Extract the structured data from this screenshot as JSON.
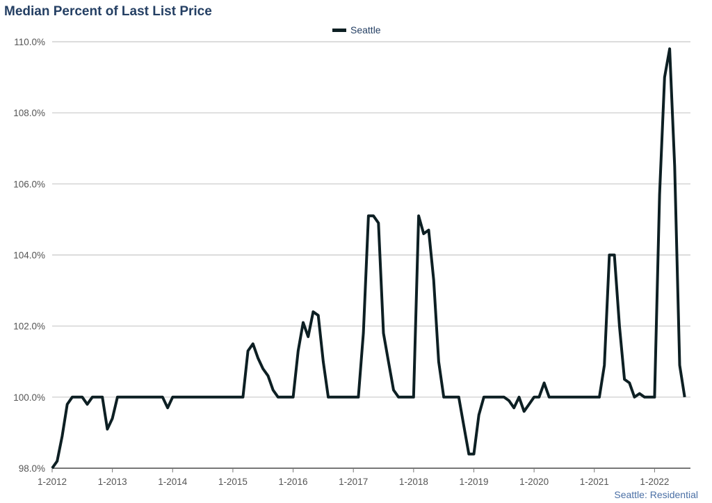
{
  "chart_data": {
    "type": "line",
    "title": "Median Percent of Last List Price",
    "footer": "Seattle: Residential",
    "xlabel": "",
    "ylabel": "",
    "ylim": [
      98,
      110
    ],
    "yticks": [
      98,
      100,
      102,
      104,
      106,
      108,
      110
    ],
    "ytick_labels": [
      "98.0%",
      "100.0%",
      "102.0%",
      "104.0%",
      "106.0%",
      "108.0%",
      "110.0%"
    ],
    "xtick_labels": [
      "1-2012",
      "1-2013",
      "1-2014",
      "1-2015",
      "1-2016",
      "1-2017",
      "1-2018",
      "1-2019",
      "1-2020",
      "1-2021",
      "1-2022"
    ],
    "x_start": "2012-01",
    "x_frequency": "monthly",
    "grid": true,
    "legend_position": "top-center",
    "series": [
      {
        "name": "Seattle",
        "color": "#0d1f23",
        "values": [
          98.0,
          98.2,
          98.9,
          99.8,
          100,
          100,
          100,
          99.8,
          100,
          100,
          100,
          99.1,
          99.4,
          100,
          100,
          100,
          100,
          100,
          100,
          100,
          100,
          100,
          100,
          99.7,
          100,
          100,
          100,
          100,
          100,
          100,
          100,
          100,
          100,
          100,
          100,
          100,
          100,
          100,
          100,
          101.3,
          101.5,
          101.1,
          100.8,
          100.6,
          100.2,
          100,
          100,
          100,
          100,
          101.3,
          102.1,
          101.7,
          102.4,
          102.3,
          101.0,
          100,
          100,
          100,
          100,
          100,
          100,
          100,
          101.8,
          105.1,
          105.1,
          104.9,
          101.8,
          101.0,
          100.2,
          100,
          100,
          100,
          100,
          105.1,
          104.6,
          104.7,
          103.3,
          101.0,
          100,
          100,
          100,
          100,
          99.2,
          98.4,
          98.4,
          99.5,
          100,
          100,
          100,
          100,
          100,
          99.9,
          99.7,
          100,
          99.6,
          99.8,
          100,
          100,
          100.4,
          100,
          100,
          100,
          100,
          100,
          100,
          100,
          100,
          100,
          100,
          100,
          100.9,
          104.0,
          104.0,
          102.0,
          100.5,
          100.4,
          100,
          100.1,
          100,
          100,
          100,
          105.7,
          109.0,
          109.8,
          106.5,
          100.9,
          100
        ]
      }
    ]
  }
}
